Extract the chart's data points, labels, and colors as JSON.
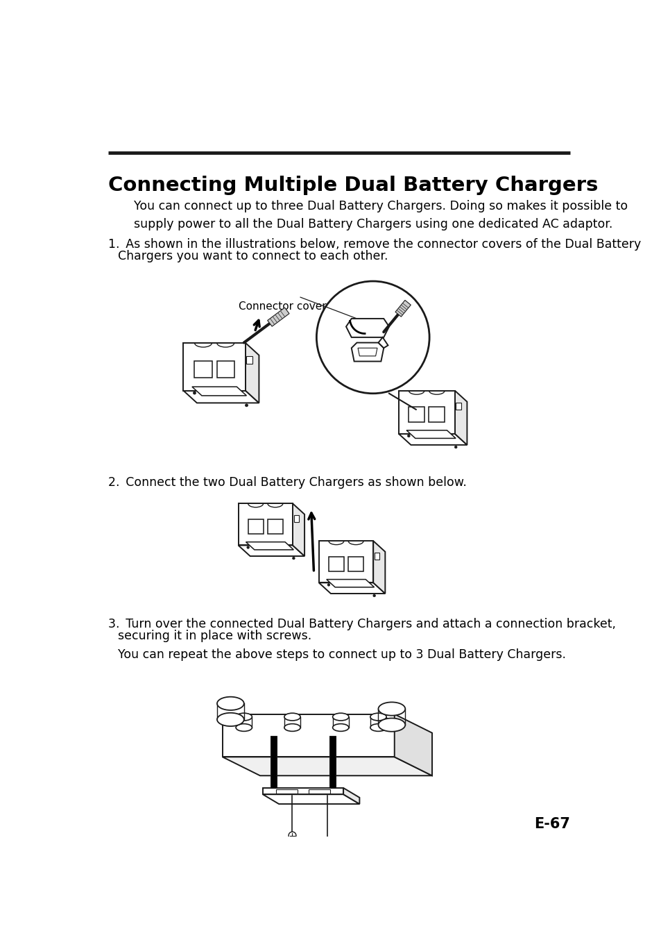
{
  "title": "Connecting Multiple Dual Battery Chargers",
  "bg_color": "#ffffff",
  "text_color": "#000000",
  "line_color": "#1a1a1a",
  "page_number": "E-67",
  "intro_text": "You can connect up to three Dual Battery Chargers. Doing so makes it possible to\nsupply power to all the Dual Battery Chargers using one dedicated AC adaptor.",
  "step1_text": "1. As shown in the illustrations below, remove the connector covers of the Dual Battery\n    Chargers you want to connect to each other.",
  "step2_text": "2. Connect the two Dual Battery Chargers as shown below.",
  "step3_text": "3. Turn over the connected Dual Battery Chargers and attach a connection bracket,\n    securing it in place with screws.",
  "step3b_text": "    You can repeat the above steps to connect up to 3 Dual Battery Chargers.",
  "connector_cover_label": "Connector cover"
}
